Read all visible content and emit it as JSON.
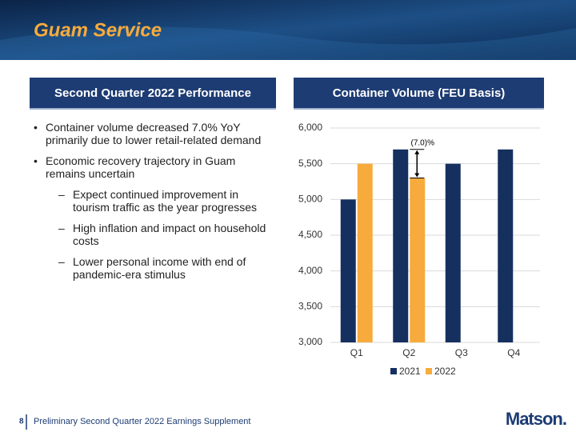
{
  "header": {
    "title": "Guam Service"
  },
  "left_panel": {
    "title": "Second Quarter 2022 Performance",
    "bullets": [
      {
        "text": "Container volume decreased 7.0% YoY primarily due to lower retail-related demand"
      },
      {
        "text": "Economic recovery trajectory in Guam remains uncertain",
        "sub": [
          "Expect continued improvement in tourism traffic as the year progresses",
          "High inflation and impact on household costs",
          "Lower personal income with end of pandemic-era stimulus"
        ]
      }
    ]
  },
  "right_panel": {
    "title": "Container Volume (FEU Basis)"
  },
  "chart_data": {
    "type": "bar",
    "categories": [
      "Q1",
      "Q2",
      "Q3",
      "Q4"
    ],
    "series": [
      {
        "name": "2021",
        "color": "#15305f",
        "values": [
          5000,
          5700,
          5500,
          5700
        ]
      },
      {
        "name": "2022",
        "color": "#f7ab3c",
        "values": [
          5500,
          5300,
          null,
          null
        ]
      }
    ],
    "ylim": [
      3000,
      6000
    ],
    "yticks": [
      {
        "value": 3000,
        "label": "3,000"
      },
      {
        "value": 3500,
        "label": "3,500"
      },
      {
        "value": 4000,
        "label": "4,000"
      },
      {
        "value": 4500,
        "label": "4,500"
      },
      {
        "value": 5000,
        "label": "5,000"
      },
      {
        "value": 5500,
        "label": "5,500"
      },
      {
        "value": 6000,
        "label": "6,000"
      }
    ],
    "grid": true,
    "legend": "bottom",
    "annotations": [
      {
        "text": "(7.0)%"
      }
    ]
  },
  "footer": {
    "page": "8",
    "text": "Preliminary Second Quarter 2022 Earnings Supplement",
    "logo": "Matson."
  }
}
